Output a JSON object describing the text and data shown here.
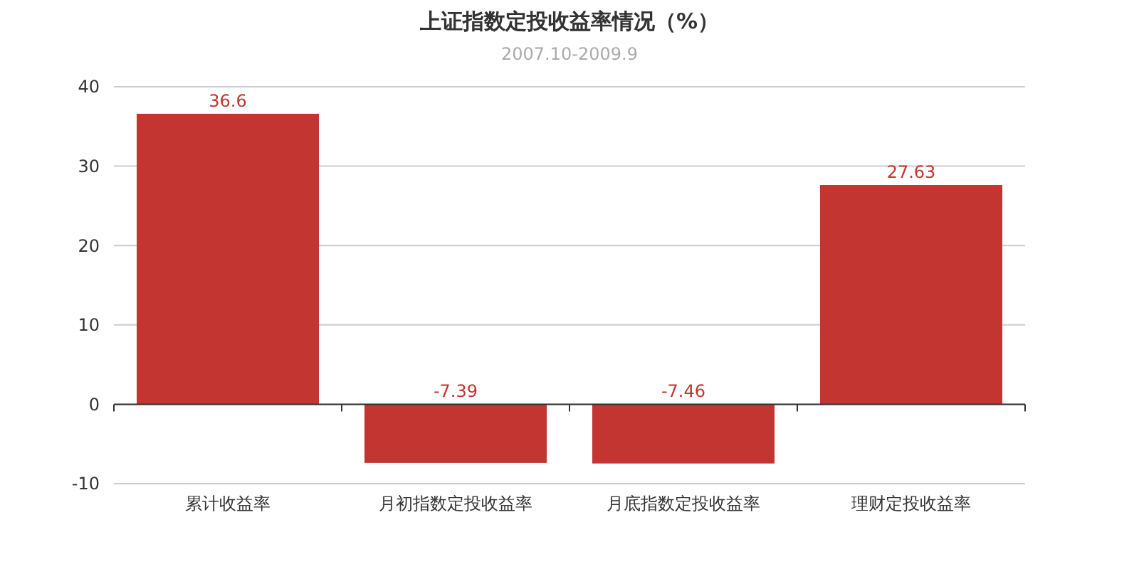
{
  "chart_data": {
    "type": "bar",
    "title": "上证指数定投收益率情况（%）",
    "subtitle": "2007.10-2009.9",
    "categories": [
      "累计收益率",
      "月初指数定投收益率",
      "月底指数定投收益率",
      "理财定投收益率"
    ],
    "values": [
      36.6,
      -7.39,
      -7.46,
      27.63
    ],
    "color": "#c23531",
    "ylim": [
      -10,
      40
    ],
    "yticks": [
      -10,
      0,
      10,
      20,
      30,
      40
    ],
    "grid": "y",
    "data_labels": true
  }
}
